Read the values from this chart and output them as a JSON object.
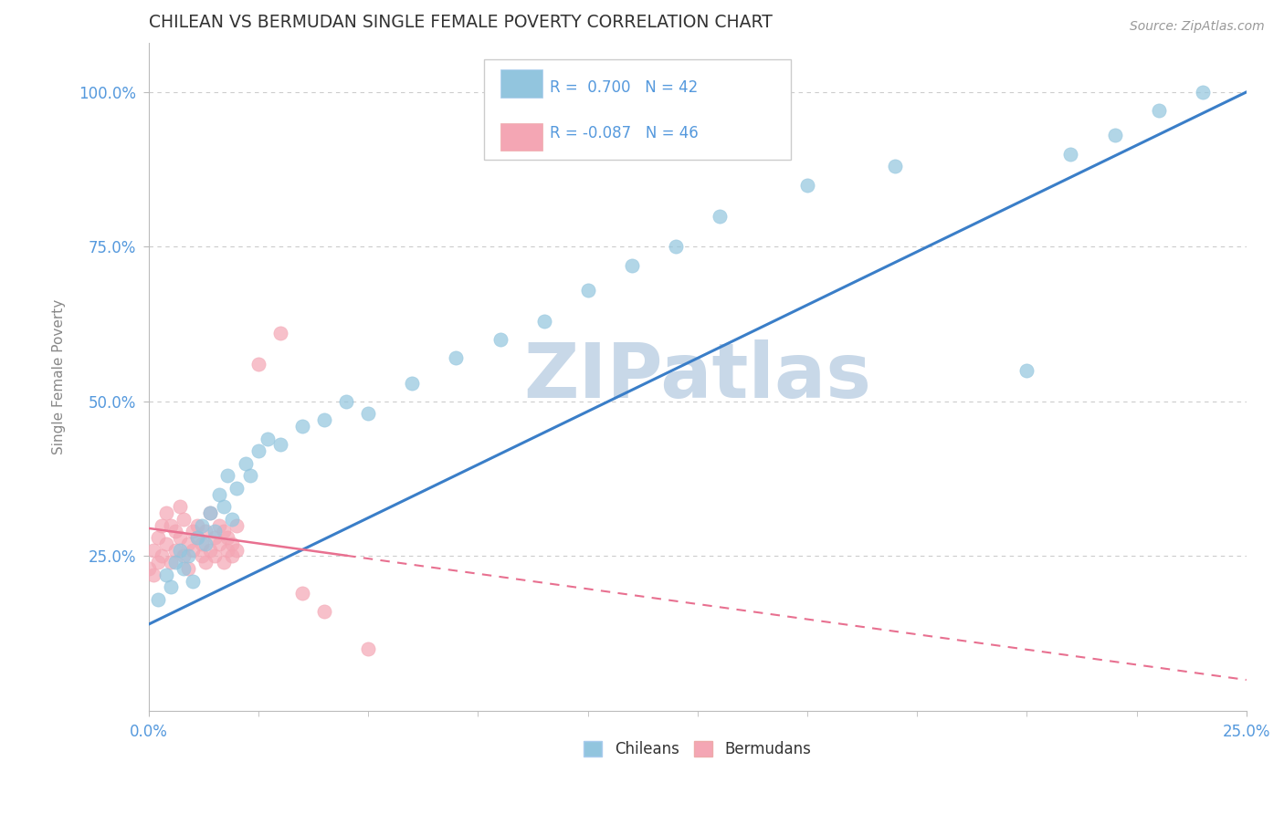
{
  "title": "CHILEAN VS BERMUDAN SINGLE FEMALE POVERTY CORRELATION CHART",
  "source": "Source: ZipAtlas.com",
  "ylabel": "Single Female Poverty",
  "xlim": [
    0.0,
    0.25
  ],
  "ylim": [
    0.0,
    1.08
  ],
  "ytick_labels": [
    "25.0%",
    "50.0%",
    "75.0%",
    "100.0%"
  ],
  "ytick_vals": [
    0.25,
    0.5,
    0.75,
    1.0
  ],
  "xtick_labels": [
    "0.0%",
    "25.0%"
  ],
  "xtick_vals": [
    0.0,
    0.25
  ],
  "chilean_R": 0.7,
  "chilean_N": 42,
  "bermudan_R": -0.087,
  "bermudan_N": 46,
  "chilean_color": "#92C5DE",
  "bermudan_color": "#F4A6B4",
  "chilean_line_color": "#3A7EC8",
  "bermudan_line_color": "#E87090",
  "title_color": "#333333",
  "axis_label_color": "#888888",
  "tick_color": "#5599DD",
  "grid_color": "#CCCCCC",
  "watermark_color": "#C8D8E8",
  "background_color": "#FFFFFF",
  "chileans_x": [
    0.002,
    0.004,
    0.005,
    0.006,
    0.007,
    0.008,
    0.009,
    0.01,
    0.011,
    0.012,
    0.013,
    0.014,
    0.015,
    0.016,
    0.017,
    0.018,
    0.019,
    0.02,
    0.022,
    0.023,
    0.025,
    0.027,
    0.03,
    0.035,
    0.04,
    0.045,
    0.05,
    0.06,
    0.07,
    0.08,
    0.09,
    0.1,
    0.11,
    0.12,
    0.13,
    0.15,
    0.17,
    0.2,
    0.21,
    0.22,
    0.23,
    0.24
  ],
  "chileans_y": [
    0.18,
    0.22,
    0.2,
    0.24,
    0.26,
    0.23,
    0.25,
    0.21,
    0.28,
    0.3,
    0.27,
    0.32,
    0.29,
    0.35,
    0.33,
    0.38,
    0.31,
    0.36,
    0.4,
    0.38,
    0.42,
    0.44,
    0.43,
    0.46,
    0.47,
    0.5,
    0.48,
    0.53,
    0.57,
    0.6,
    0.63,
    0.68,
    0.72,
    0.75,
    0.8,
    0.85,
    0.88,
    0.55,
    0.9,
    0.93,
    0.97,
    1.0
  ],
  "bermudans_x": [
    0.0,
    0.001,
    0.001,
    0.002,
    0.002,
    0.003,
    0.003,
    0.004,
    0.004,
    0.005,
    0.005,
    0.006,
    0.006,
    0.007,
    0.007,
    0.008,
    0.008,
    0.009,
    0.009,
    0.01,
    0.01,
    0.011,
    0.011,
    0.012,
    0.012,
    0.013,
    0.013,
    0.014,
    0.014,
    0.015,
    0.015,
    0.016,
    0.016,
    0.017,
    0.017,
    0.018,
    0.018,
    0.019,
    0.019,
    0.02,
    0.02,
    0.025,
    0.03,
    0.035,
    0.04,
    0.05
  ],
  "bermudans_y": [
    0.23,
    0.26,
    0.22,
    0.28,
    0.24,
    0.3,
    0.25,
    0.27,
    0.32,
    0.24,
    0.3,
    0.29,
    0.26,
    0.28,
    0.33,
    0.25,
    0.31,
    0.27,
    0.23,
    0.29,
    0.26,
    0.28,
    0.3,
    0.25,
    0.27,
    0.29,
    0.24,
    0.32,
    0.26,
    0.28,
    0.25,
    0.3,
    0.27,
    0.29,
    0.24,
    0.28,
    0.26,
    0.25,
    0.27,
    0.3,
    0.26,
    0.56,
    0.61,
    0.19,
    0.16,
    0.1
  ]
}
